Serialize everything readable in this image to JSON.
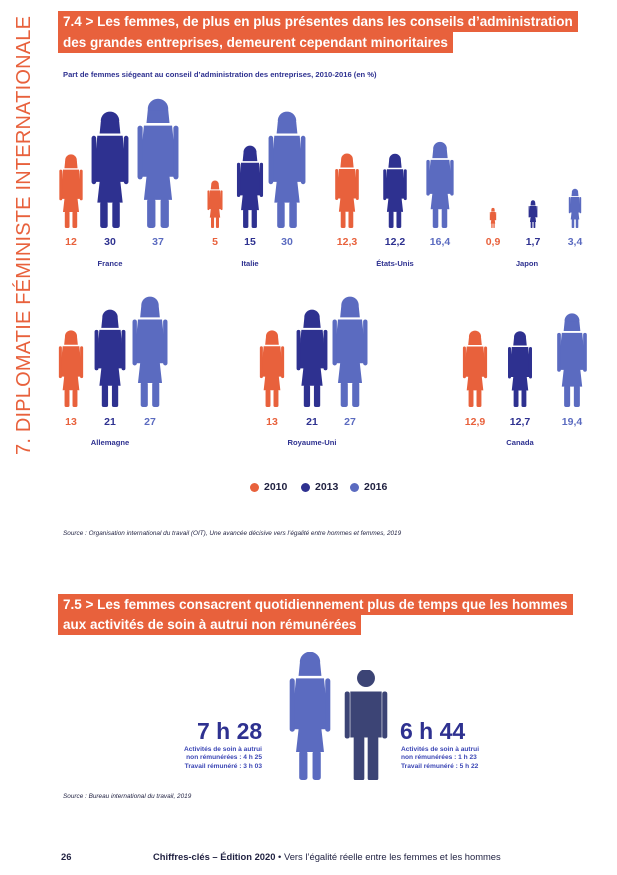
{
  "side_title": "7. DIPLOMATIE FÉMINISTE INTERNATIONALE",
  "section1": {
    "title_line1": "7.4 > Les femmes, de plus en plus présentes dans les conseils d’administration",
    "title_line2": "des grandes entreprises, demeurent cependant minoritaires",
    "subtitle": "Part de femmes siégeant au conseil d’administration des entreprises, 2010-2016 (en %)",
    "source": "Source : Organisation international du travail (OIT), Une avancée décisive vers l’égalité entre hommes et femmes, 2019"
  },
  "legend": [
    {
      "label": "2010",
      "color": "#e8613c"
    },
    {
      "label": "2013",
      "color": "#2e3190"
    },
    {
      "label": "2016",
      "color": "#5b6bc0"
    }
  ],
  "chart_data": {
    "type": "bar",
    "title": "Part de femmes siégeant au conseil d’administration des entreprises, 2010-2016 (en %)",
    "categories": [
      "France",
      "Italie",
      "États-Unis",
      "Japon",
      "Allemagne",
      "Royaume-Uni",
      "Canada"
    ],
    "series": [
      {
        "name": "2010",
        "values": [
          12,
          5,
          12.3,
          0.9,
          13,
          13,
          12.9
        ],
        "labels": [
          "12",
          "5",
          "12,3",
          "0,9",
          "13",
          "13",
          "12,9"
        ]
      },
      {
        "name": "2013",
        "values": [
          30,
          15,
          12.2,
          1.7,
          21,
          21,
          12.7
        ],
        "labels": [
          "30",
          "15",
          "12,2",
          "1,7",
          "21",
          "21",
          "12,7"
        ]
      },
      {
        "name": "2016",
        "values": [
          37,
          30,
          16.4,
          3.4,
          27,
          27,
          19.4
        ],
        "labels": [
          "37",
          "30",
          "16,4",
          "3,4",
          "27",
          "27",
          "19,4"
        ]
      }
    ],
    "colors": [
      "#e8613c",
      "#2e3190",
      "#5b6bc0"
    ],
    "legend_position": "bottom",
    "grid": false
  },
  "section2": {
    "title_line1": "7.5 > Les femmes consacrent quotidiennement plus de temps que les hommes",
    "title_line2": "aux activités de soin à autrui non rémunérées",
    "women": {
      "time": "7 h 28",
      "line1": "Activités de soin à autrui",
      "line2": "non rémunérées : 4 h 25",
      "line3": "Travail rémunéré : 3 h 03"
    },
    "men": {
      "time": "6 h 44",
      "line1": "Activités de soin à autrui",
      "line2": "non rémunérées : 1 h 23",
      "line3": "Travail rémunéré : 5 h 22"
    },
    "source": "Source : Bureau international du travail, 2019"
  },
  "footer": {
    "page": "26",
    "edition": "Chiffres-clés – Édition 2020",
    "separator": " • ",
    "text": "Vers l’égalité réelle entre les femmes et les hommes"
  }
}
